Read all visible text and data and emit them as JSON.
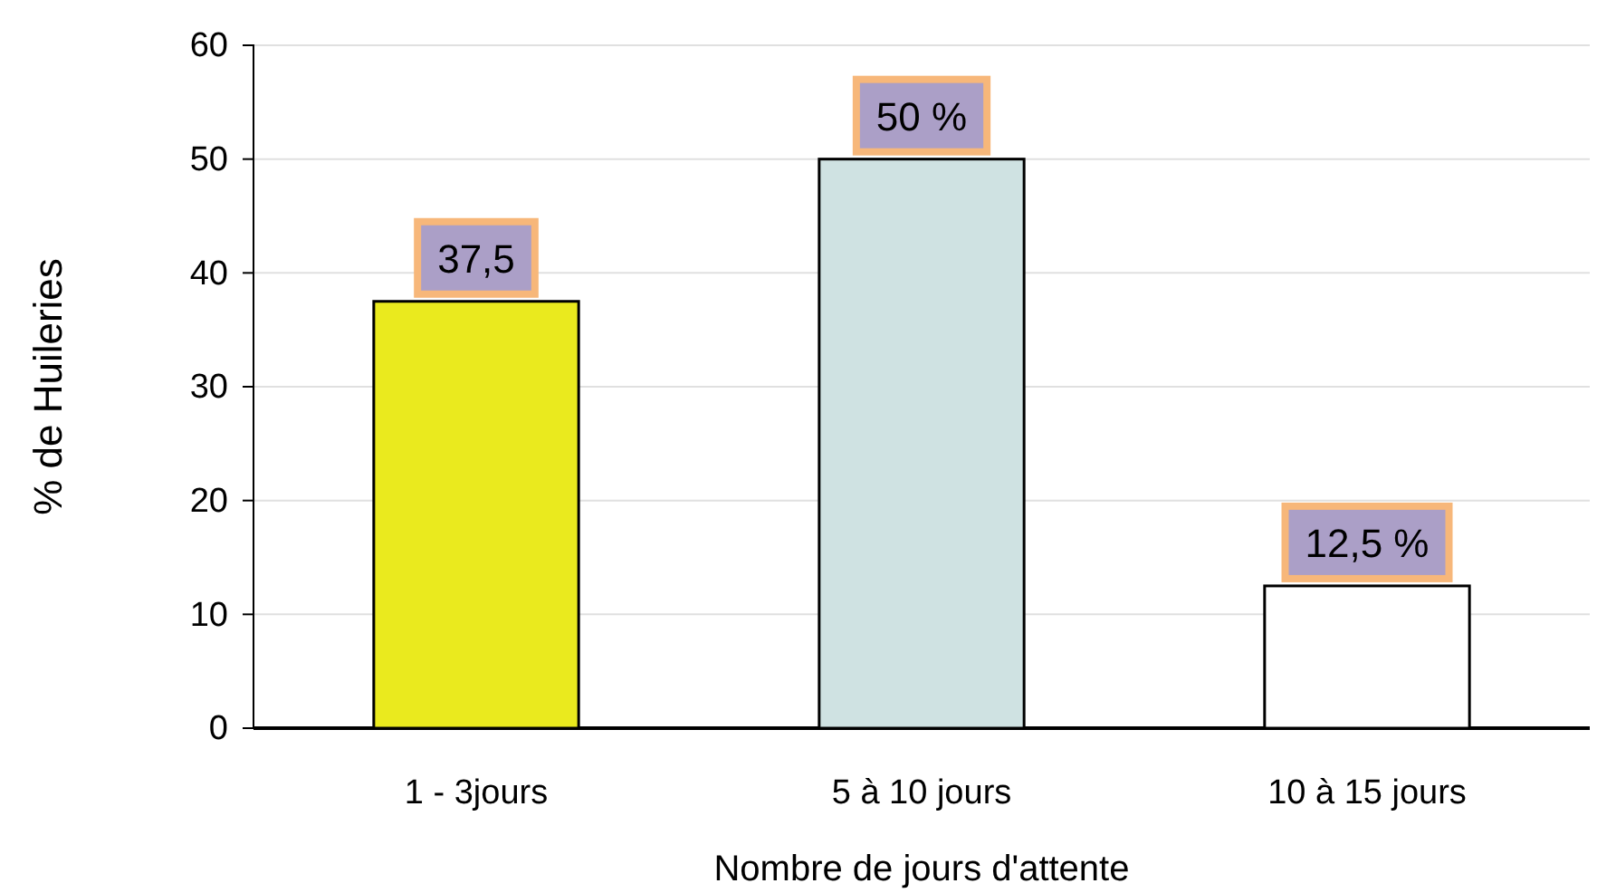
{
  "chart_data": {
    "type": "bar",
    "xlabel": "Nombre de jours d'attente",
    "ylabel": "% de Huileries",
    "categories": [
      "1 - 3jours",
      "5 à 10 jours",
      "10 à 15 jours"
    ],
    "values": [
      37.5,
      50,
      12.5
    ],
    "colors": [
      "#eaea1e",
      "#cfe2e2",
      "#ffffff"
    ],
    "value_labels": [
      "37,5",
      "50 %",
      "12,5 %"
    ],
    "ylim": [
      0,
      60
    ],
    "yticks": [
      0,
      10,
      20,
      30,
      40,
      50,
      60
    ],
    "grid": "y"
  }
}
